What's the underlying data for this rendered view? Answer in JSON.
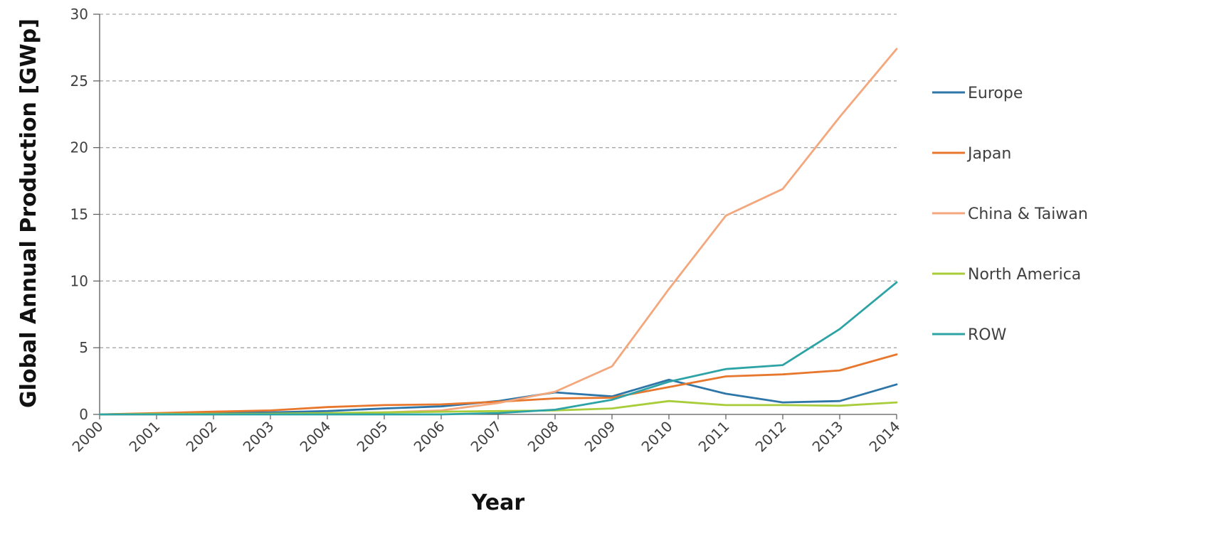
{
  "chart_data": {
    "type": "line",
    "x": [
      2000,
      2001,
      2002,
      2003,
      2004,
      2005,
      2006,
      2007,
      2008,
      2009,
      2010,
      2011,
      2012,
      2013,
      2014
    ],
    "x_tick_labels": [
      "2000",
      "2001",
      "2002",
      "2003",
      "2004",
      "2005",
      "2006",
      "2007",
      "2008",
      "2009",
      "2010",
      "2011",
      "2012",
      "2013",
      "2014"
    ],
    "y_ticks": [
      0,
      5,
      10,
      15,
      20,
      25,
      30
    ],
    "y_tick_labels": [
      "0",
      "5",
      "10",
      "15",
      "20",
      "25",
      "30"
    ],
    "ylim": [
      0,
      30
    ],
    "xlabel": "Year",
    "ylabel": "Global Annual Production [GWp]",
    "grid": "horizontal-dashed",
    "legend_position": "right",
    "series": [
      {
        "name": "Europe",
        "color": "#2e75a8",
        "values": [
          0.0,
          0.05,
          0.1,
          0.15,
          0.25,
          0.45,
          0.6,
          1.0,
          1.65,
          1.35,
          2.6,
          1.55,
          0.9,
          1.0,
          2.25
        ]
      },
      {
        "name": "Japan",
        "color": "#e8772e",
        "values": [
          0.0,
          0.1,
          0.2,
          0.3,
          0.55,
          0.7,
          0.75,
          0.95,
          1.2,
          1.25,
          2.05,
          2.85,
          3.0,
          3.3,
          4.5
        ]
      },
      {
        "name": "China & Taiwan",
        "color": "#f4a77c",
        "values": [
          0.0,
          0.0,
          0.0,
          0.05,
          0.05,
          0.15,
          0.3,
          0.85,
          1.7,
          3.6,
          9.4,
          14.9,
          16.9,
          22.3,
          27.4
        ]
      },
      {
        "name": "North America",
        "color": "#a9cd3a",
        "values": [
          0.0,
          0.05,
          0.05,
          0.05,
          0.1,
          0.15,
          0.2,
          0.25,
          0.3,
          0.45,
          1.0,
          0.7,
          0.7,
          0.65,
          0.9
        ]
      },
      {
        "name": "ROW",
        "color": "#2ea3a6",
        "values": [
          0.0,
          0.0,
          0.0,
          0.0,
          0.0,
          0.0,
          0.0,
          0.1,
          0.35,
          1.1,
          2.45,
          3.4,
          3.7,
          6.4,
          9.9
        ]
      }
    ]
  }
}
